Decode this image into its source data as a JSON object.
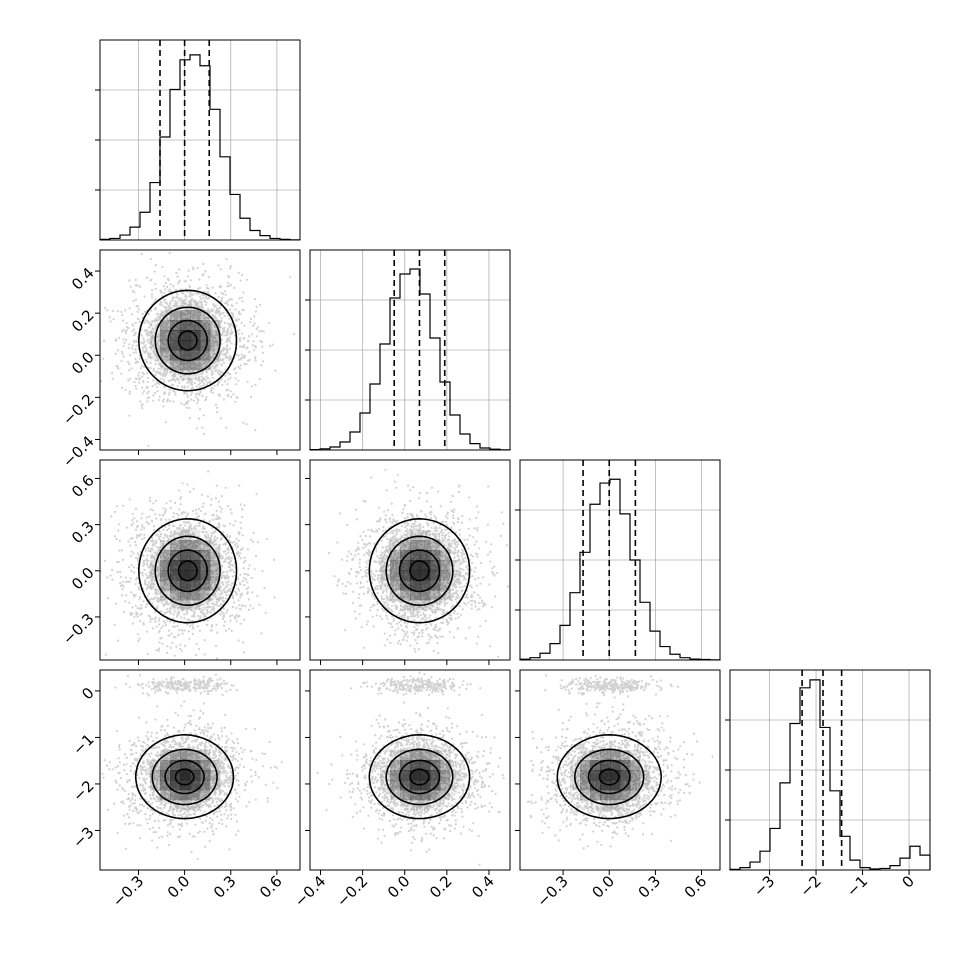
{
  "chart_data": {
    "type": "corner",
    "n_params": 4,
    "grid": true,
    "params": [
      {
        "range": [
          -0.55,
          0.75
        ],
        "ticks": [
          -0.3,
          0.0,
          0.3,
          0.6
        ],
        "tick_labels": [
          "−0.3",
          "0.0",
          "0.3",
          "0.6"
        ],
        "quantiles": [
          -0.16,
          0.0,
          0.16
        ],
        "hist": {
          "bins": [
            -0.55,
            -0.485,
            -0.42,
            -0.355,
            -0.29,
            -0.225,
            -0.16,
            -0.095,
            -0.03,
            0.035,
            0.1,
            0.165,
            0.23,
            0.295,
            0.36,
            0.425,
            0.49,
            0.555,
            0.62,
            0.685,
            0.75
          ],
          "counts": [
            3,
            8,
            25,
            65,
            140,
            290,
            520,
            760,
            910,
            935,
            880,
            660,
            420,
            230,
            110,
            48,
            22,
            8,
            3,
            1
          ],
          "ylim": [
            0,
            1010
          ]
        }
      },
      {
        "range": [
          -0.45,
          0.5
        ],
        "ticks": [
          -0.4,
          -0.2,
          0.0,
          0.2,
          0.4
        ],
        "tick_labels": [
          "−0.4",
          "−0.2",
          "0.0",
          "0.2",
          "0.4"
        ],
        "quantiles": [
          -0.05,
          0.07,
          0.19
        ],
        "hist": {
          "bins": [
            -0.45,
            -0.4025,
            -0.355,
            -0.3075,
            -0.26,
            -0.2125,
            -0.165,
            -0.1175,
            -0.07,
            -0.0225,
            0.025,
            0.0725,
            0.12,
            0.1675,
            0.215,
            0.2625,
            0.31,
            0.3575,
            0.405,
            0.4525,
            0.5
          ],
          "counts": [
            2,
            6,
            15,
            40,
            90,
            185,
            330,
            530,
            760,
            880,
            905,
            780,
            560,
            340,
            175,
            80,
            32,
            10,
            4,
            1
          ],
          "ylim": [
            0,
            1000
          ]
        }
      },
      {
        "range": [
          -0.58,
          0.72
        ],
        "ticks": [
          -0.3,
          0.0,
          0.3,
          0.6
        ],
        "tick_labels": [
          "−0.3",
          "0.0",
          "0.3",
          "0.6"
        ],
        "quantiles": [
          -0.17,
          0.0,
          0.17
        ],
        "hist": {
          "bins": [
            -0.58,
            -0.515,
            -0.45,
            -0.385,
            -0.32,
            -0.255,
            -0.19,
            -0.125,
            -0.06,
            0.005,
            0.07,
            0.135,
            0.2,
            0.265,
            0.33,
            0.395,
            0.46,
            0.525,
            0.59,
            0.655,
            0.72
          ],
          "counts": [
            4,
            12,
            35,
            85,
            180,
            350,
            560,
            810,
            920,
            940,
            760,
            520,
            300,
            150,
            70,
            30,
            12,
            5,
            3,
            1
          ],
          "ylim": [
            0,
            1040
          ]
        }
      },
      {
        "range": [
          -3.85,
          0.45
        ],
        "ticks": [
          -3,
          -2,
          -1,
          0
        ],
        "tick_labels": [
          "−3",
          "−2",
          "−1",
          "0"
        ],
        "quantiles": [
          -2.3,
          -1.85,
          -1.45
        ],
        "hist": {
          "bins": [
            -3.85,
            -3.635,
            -3.42,
            -3.205,
            -2.99,
            -2.775,
            -2.56,
            -2.345,
            -2.13,
            -1.915,
            -1.7,
            -1.485,
            -1.27,
            -1.055,
            -0.84,
            -0.625,
            -0.41,
            -0.195,
            0.02,
            0.235,
            0.45
          ],
          "counts": [
            3,
            12,
            40,
            95,
            210,
            440,
            740,
            920,
            960,
            720,
            400,
            170,
            50,
            12,
            5,
            8,
            22,
            60,
            120,
            75
          ],
          "ylim": [
            0,
            1010
          ]
        }
      }
    ],
    "y_axis_ticks": [
      null,
      {
        "ticks": [
          -0.4,
          -0.2,
          0.0,
          0.2,
          0.4
        ],
        "tick_labels": [
          "−0.4",
          "−0.2",
          "0.0",
          "0.2",
          "0.4"
        ]
      },
      {
        "ticks": [
          -0.3,
          0.0,
          0.3,
          0.6
        ],
        "tick_labels": [
          "−0.3",
          "0.0",
          "0.3",
          "0.6"
        ]
      },
      {
        "ticks": [
          -3,
          -2,
          -1,
          0
        ],
        "tick_labels": [
          "−3",
          "−2",
          "−1",
          "0"
        ]
      }
    ],
    "pairs": [
      {
        "x_param": 0,
        "y_param": 1,
        "centers": [
          {
            "x": 0.02,
            "y": 0.07,
            "w": 1.0
          }
        ],
        "sx": 0.16,
        "sy": 0.12,
        "density_peak": 0.75
      },
      {
        "x_param": 0,
        "y_param": 2,
        "centers": [
          {
            "x": 0.02,
            "y": 0.0,
            "w": 1.0
          }
        ],
        "sx": 0.16,
        "sy": 0.17,
        "density_peak": 0.8
      },
      {
        "x_param": 1,
        "y_param": 2,
        "centers": [
          {
            "x": 0.07,
            "y": 0.0,
            "w": 1.0
          }
        ],
        "sx": 0.12,
        "sy": 0.17,
        "density_peak": 0.8
      },
      {
        "x_param": 0,
        "y_param": 3,
        "centers": [
          {
            "x": 0.0,
            "y": -1.85,
            "w": 1.0
          },
          {
            "x": 0.0,
            "y": 0.12,
            "w": 0.12
          }
        ],
        "sx": 0.16,
        "sy": 0.45,
        "density_peak": 0.8
      },
      {
        "x_param": 1,
        "y_param": 3,
        "centers": [
          {
            "x": 0.07,
            "y": -1.85,
            "w": 1.0
          },
          {
            "x": 0.07,
            "y": 0.12,
            "w": 0.12
          }
        ],
        "sx": 0.12,
        "sy": 0.45,
        "density_peak": 0.8
      },
      {
        "x_param": 2,
        "y_param": 3,
        "centers": [
          {
            "x": 0.0,
            "y": -1.85,
            "w": 1.0
          },
          {
            "x": 0.0,
            "y": 0.12,
            "w": 0.12
          }
        ],
        "sx": 0.17,
        "sy": 0.45,
        "density_peak": 0.8
      }
    ],
    "colors": {
      "line": "#000000",
      "grid": "#b0b0b0",
      "scatter": "#bdbdbd",
      "density": "#000000"
    }
  }
}
